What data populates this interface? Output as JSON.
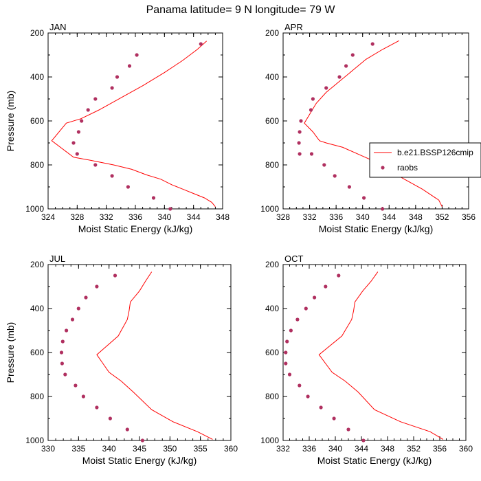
{
  "figure": {
    "title": "Panama  latitude= 9 N longitude= 79 W",
    "colors": {
      "model": "#ff0000",
      "obs": "#b03060",
      "axis": "#000000"
    }
  },
  "legend": {
    "entries": [
      {
        "label": "b.e21.BSSP126cmip",
        "marker": "line"
      },
      {
        "label": "raobs",
        "marker": "dot"
      }
    ]
  },
  "chart_data": [
    {
      "type": "line",
      "month": "JAN",
      "xlabel": "Moist Static Energy (kJ/kg)",
      "ylabel": "Pressure (mb)",
      "xlim": [
        324,
        348
      ],
      "ylim": [
        1000,
        200
      ],
      "xticks": [
        324,
        328,
        332,
        336,
        340,
        344,
        348
      ],
      "yticks": [
        200,
        400,
        600,
        800,
        1000
      ],
      "series": [
        {
          "name": "b.e21.BSSP126cmip",
          "style": "line",
          "x": [
            345.8,
            344.5,
            342.5,
            340,
            337,
            334,
            331,
            328.5,
            326.5,
            324.5,
            327.5,
            330,
            333,
            335.5,
            337.5,
            339.5,
            341,
            342.5,
            344,
            345.5,
            346.5,
            347
          ],
          "y": [
            237,
            275,
            325,
            380,
            440,
            495,
            550,
            590,
            610,
            690,
            765,
            780,
            800,
            820,
            845,
            865,
            890,
            910,
            930,
            950,
            970,
            990
          ]
        },
        {
          "name": "raobs",
          "style": "dot",
          "x": [
            345,
            336.2,
            335.2,
            333.5,
            332.8,
            330.5,
            329.5,
            328.6,
            328.2,
            327.5,
            328,
            330.5,
            332.8,
            335,
            338.5,
            340.8
          ],
          "y": [
            250,
            300,
            350,
            400,
            450,
            500,
            550,
            600,
            650,
            700,
            750,
            800,
            850,
            900,
            950,
            1000
          ]
        }
      ]
    },
    {
      "type": "line",
      "month": "APR",
      "xlabel": "Moist Static Energy (kJ/kg)",
      "ylabel": "",
      "xlim": [
        328,
        356
      ],
      "ylim": [
        1000,
        200
      ],
      "xticks": [
        328,
        332,
        336,
        340,
        344,
        348,
        352,
        356
      ],
      "yticks": [
        200,
        400,
        600,
        800,
        1000
      ],
      "series": [
        {
          "name": "b.e21.BSSP126cmip",
          "style": "line",
          "x": [
            345.5,
            343,
            340.5,
            338.5,
            336.5,
            334.5,
            333,
            331.2,
            332.5,
            333.5,
            334.5,
            337,
            340,
            343,
            346,
            349,
            351.5,
            352
          ],
          "y": [
            235,
            275,
            320,
            370,
            420,
            470,
            520,
            610,
            650,
            690,
            700,
            720,
            760,
            800,
            860,
            910,
            960,
            990
          ]
        },
        {
          "name": "raobs",
          "style": "dot",
          "x": [
            341.5,
            338.5,
            337.5,
            336.5,
            334.5,
            332.5,
            332.2,
            330.7,
            330.5,
            330.4,
            330.5,
            332.3,
            334.2,
            335.8,
            338,
            340.2,
            343
          ],
          "y": [
            250,
            300,
            350,
            400,
            450,
            500,
            550,
            600,
            650,
            700,
            750,
            750,
            800,
            850,
            900,
            950,
            1000
          ]
        }
      ]
    },
    {
      "type": "line",
      "month": "JUL",
      "xlabel": "Moist Static Energy (kJ/kg)",
      "ylabel": "Pressure (mb)",
      "xlim": [
        330,
        360
      ],
      "ylim": [
        1000,
        200
      ],
      "xticks": [
        330,
        335,
        340,
        345,
        350,
        355,
        360
      ],
      "yticks": [
        200,
        400,
        600,
        800,
        1000
      ],
      "series": [
        {
          "name": "b.e21.BSSP126cmip",
          "style": "line",
          "x": [
            347,
            346,
            345,
            343.5,
            343.3,
            343,
            341.5,
            338,
            339,
            340,
            342,
            344,
            347,
            350.5,
            354.5,
            357
          ],
          "y": [
            233,
            275,
            320,
            370,
            410,
            450,
            525,
            610,
            650,
            690,
            730,
            780,
            860,
            915,
            960,
            995
          ]
        },
        {
          "name": "raobs",
          "style": "dot",
          "x": [
            341,
            338,
            336.2,
            335,
            334,
            333,
            332.4,
            332.2,
            332.3,
            332.8,
            334.5,
            335.8,
            338,
            340.2,
            343,
            345.5
          ],
          "y": [
            250,
            300,
            350,
            400,
            450,
            500,
            550,
            600,
            650,
            700,
            750,
            800,
            850,
            900,
            950,
            1000
          ]
        }
      ]
    },
    {
      "type": "line",
      "month": "OCT",
      "xlabel": "Moist Static Energy (kJ/kg)",
      "ylabel": "",
      "xlim": [
        332,
        360
      ],
      "ylim": [
        1000,
        200
      ],
      "xticks": [
        332,
        336,
        340,
        344,
        348,
        352,
        356,
        360
      ],
      "yticks": [
        200,
        400,
        600,
        800,
        1000
      ],
      "series": [
        {
          "name": "b.e21.BSSP126cmip",
          "style": "line",
          "x": [
            346.5,
            345.5,
            344.2,
            343,
            342.8,
            342.5,
            341,
            337.5,
            338.5,
            339.5,
            341.5,
            343.5,
            346,
            350,
            354.5,
            356.5
          ],
          "y": [
            233,
            275,
            320,
            370,
            410,
            450,
            525,
            610,
            650,
            690,
            730,
            780,
            860,
            915,
            960,
            995
          ]
        },
        {
          "name": "raobs",
          "style": "dot",
          "x": [
            340.5,
            338.5,
            336.8,
            335.5,
            334.2,
            333.2,
            332.6,
            332.4,
            332.4,
            333,
            334.5,
            335.8,
            337.8,
            339.8,
            342,
            344.3
          ],
          "y": [
            250,
            300,
            350,
            400,
            450,
            500,
            550,
            600,
            650,
            700,
            750,
            800,
            850,
            900,
            950,
            1000
          ]
        }
      ]
    }
  ]
}
